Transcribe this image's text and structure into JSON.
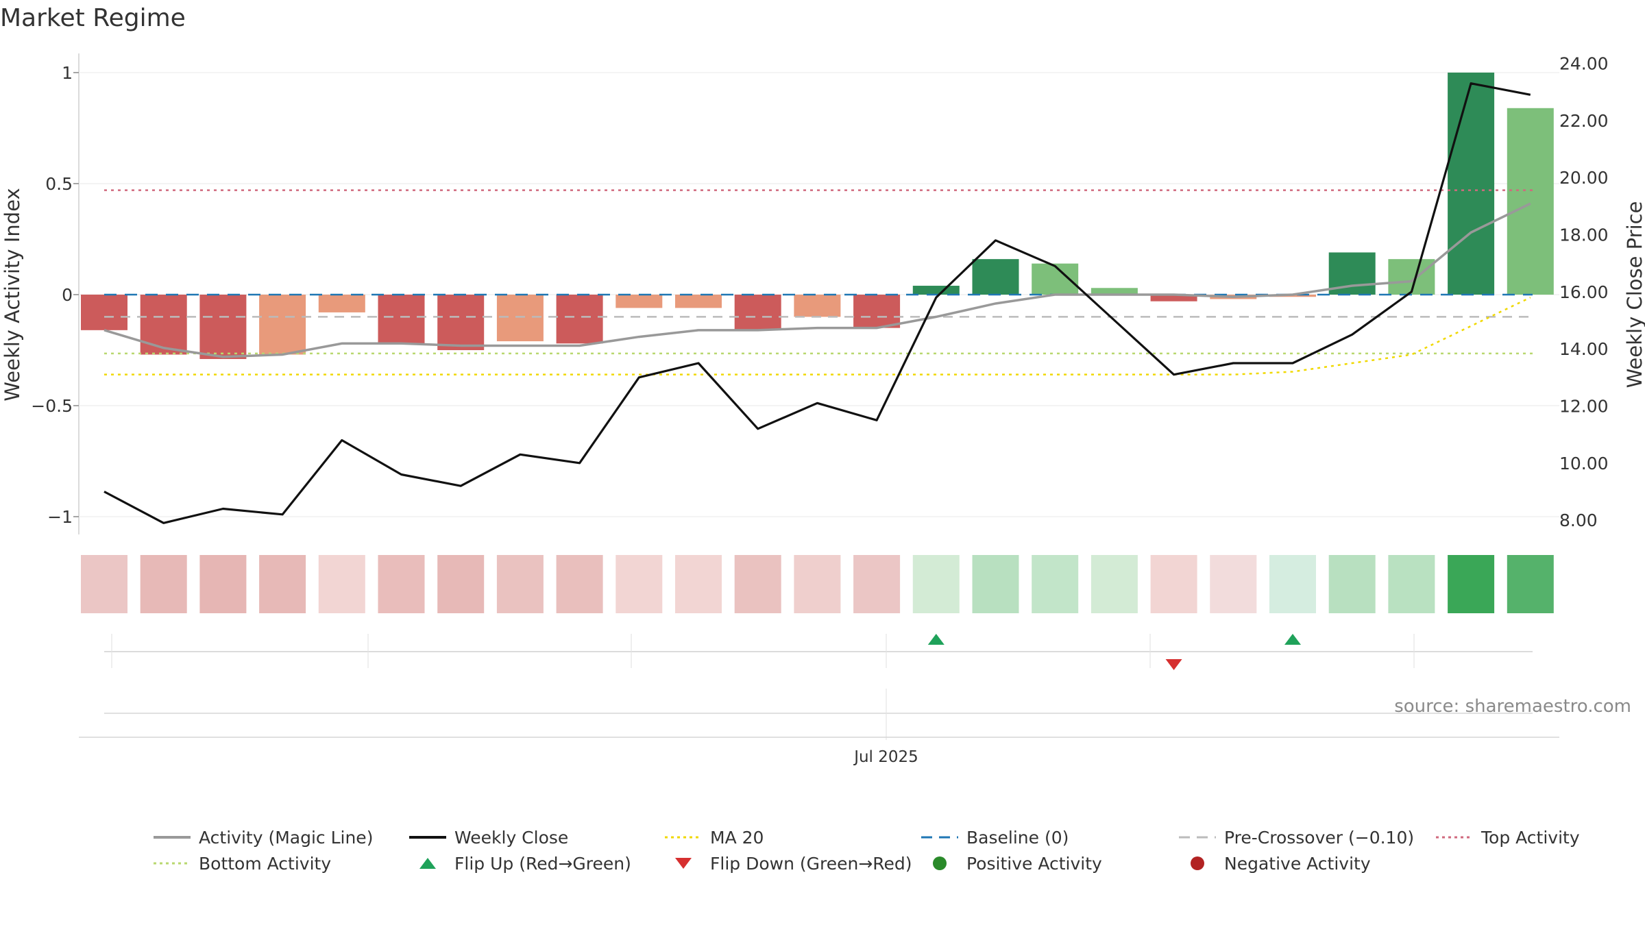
{
  "title": "Market Regime",
  "source": "source: sharemaestro.com",
  "chart_data": {
    "type": "bar",
    "x_tick_label": "Jul 2025",
    "ylabel_left": "Weekly Activity Index",
    "ylabel_right": "Weekly Close Price",
    "left_axis": {
      "ylim": [
        -1.08,
        1.08
      ],
      "ticks": [
        -1,
        -0.5,
        0,
        0.5,
        1
      ],
      "tick_labels": [
        "−1",
        "−0.5",
        "0",
        "0.5",
        "1"
      ]
    },
    "right_axis": {
      "ylim": [
        7.5,
        24.3
      ],
      "ticks": [
        8,
        10,
        12,
        14,
        16,
        18,
        20,
        22,
        24
      ],
      "tick_labels": [
        "8.00",
        "10.00",
        "12.00",
        "14.00",
        "16.00",
        "18.00",
        "20.00",
        "22.00",
        "24.00"
      ]
    },
    "activity_bars": [
      -0.16,
      -0.27,
      -0.29,
      -0.27,
      -0.08,
      -0.22,
      -0.25,
      -0.21,
      -0.22,
      -0.06,
      -0.06,
      -0.16,
      -0.1,
      -0.15,
      0.04,
      0.16,
      0.14,
      0.03,
      -0.03,
      -0.02,
      -0.01,
      0.19,
      0.16,
      1.0,
      0.84
    ],
    "bar_colors": [
      "#cc5b5b",
      "#cc5b5b",
      "#cc5b5b",
      "#e89a7b",
      "#e89a7b",
      "#cc5b5b",
      "#cc5b5b",
      "#e89a7b",
      "#cc5b5b",
      "#e89a7b",
      "#e89a7b",
      "#cc5b5b",
      "#e89a7b",
      "#cc5b5b",
      "#2e8b57",
      "#2e8b57",
      "#7dbf7a",
      "#7dbf7a",
      "#cc5b5b",
      "#e89a7b",
      "#e89a7b",
      "#2e8b57",
      "#7dbf7a",
      "#2e8b57",
      "#7dbf7a"
    ],
    "heat_colors": [
      "#ebc6c5",
      "#e7b9b7",
      "#e6b6b4",
      "#e7b9b7",
      "#f2d5d3",
      "#e9bdbb",
      "#e7b9b7",
      "#eac2c0",
      "#e9bfbd",
      "#f2d5d3",
      "#f2d5d3",
      "#eac2c0",
      "#efcfcd",
      "#ebc6c5",
      "#d3ebd5",
      "#b8e0c0",
      "#c2e5c9",
      "#d3ebd5",
      "#f2d5d3",
      "#f2dcdc",
      "#d5ede0",
      "#b8e0c0",
      "#b9e1c1",
      "#3aa757",
      "#55b26b"
    ],
    "magic_line": [
      -0.16,
      -0.24,
      -0.28,
      -0.27,
      -0.22,
      -0.22,
      -0.23,
      -0.23,
      -0.23,
      -0.19,
      -0.16,
      -0.16,
      -0.15,
      -0.15,
      -0.1,
      -0.04,
      0.0,
      0.0,
      0.0,
      -0.01,
      0.0,
      0.04,
      0.06,
      0.28,
      0.41
    ],
    "weekly_close": [
      9.0,
      7.9,
      8.4,
      8.2,
      10.8,
      9.6,
      9.2,
      10.3,
      10.0,
      13.0,
      13.5,
      11.2,
      12.1,
      11.5,
      15.8,
      17.8,
      16.9,
      15.0,
      13.1,
      13.5,
      13.5,
      14.5,
      16.0,
      23.3,
      22.9
    ],
    "ma20": [
      null,
      null,
      null,
      null,
      null,
      null,
      null,
      null,
      null,
      null,
      null,
      null,
      null,
      null,
      null,
      null,
      null,
      null,
      13.1,
      13.1,
      13.2,
      13.5,
      13.8,
      14.8,
      15.8
    ],
    "ma20_flat_level": 13.1,
    "reference_lines": {
      "baseline": 0,
      "pre_crossover": -0.1,
      "top_activity": 0.47,
      "bottom_activity": -0.265
    },
    "flip_up_weeks": [
      14,
      20
    ],
    "flip_down_weeks": [
      18
    ],
    "colors": {
      "baseline": "#1f77b4",
      "pre_crossover": "#bbbbbb",
      "top": "#d06a7e",
      "bottom": "#b9d86f",
      "ma20": "#f0d800",
      "magic": "#999999",
      "close": "#111111",
      "flip_up": "#1fa25a",
      "flip_down": "#d62f2f",
      "pos": "#2a8a2a",
      "neg": "#b22222"
    }
  },
  "legend": [
    {
      "label": "Activity (Magic Line)",
      "icon": "solid-gray-line"
    },
    {
      "label": "Weekly Close",
      "icon": "solid-black-line"
    },
    {
      "label": "MA 20",
      "icon": "dotted-yellow-line"
    },
    {
      "label": "Baseline (0)",
      "icon": "dashed-blue-line"
    },
    {
      "label": "Pre-Crossover (−0.10)",
      "icon": "dashed-gray-line"
    },
    {
      "label": "Top Activity",
      "icon": "dotted-pink-line"
    },
    {
      "label": "Bottom Activity",
      "icon": "dotted-green-line"
    },
    {
      "label": "Flip Up (Red→Green)",
      "icon": "triangle-up-icon"
    },
    {
      "label": "Flip Down (Green→Red)",
      "icon": "triangle-down-icon"
    },
    {
      "label": "Positive Activity",
      "icon": "green-dot-icon"
    },
    {
      "label": "Negative Activity",
      "icon": "red-dot-icon"
    }
  ]
}
